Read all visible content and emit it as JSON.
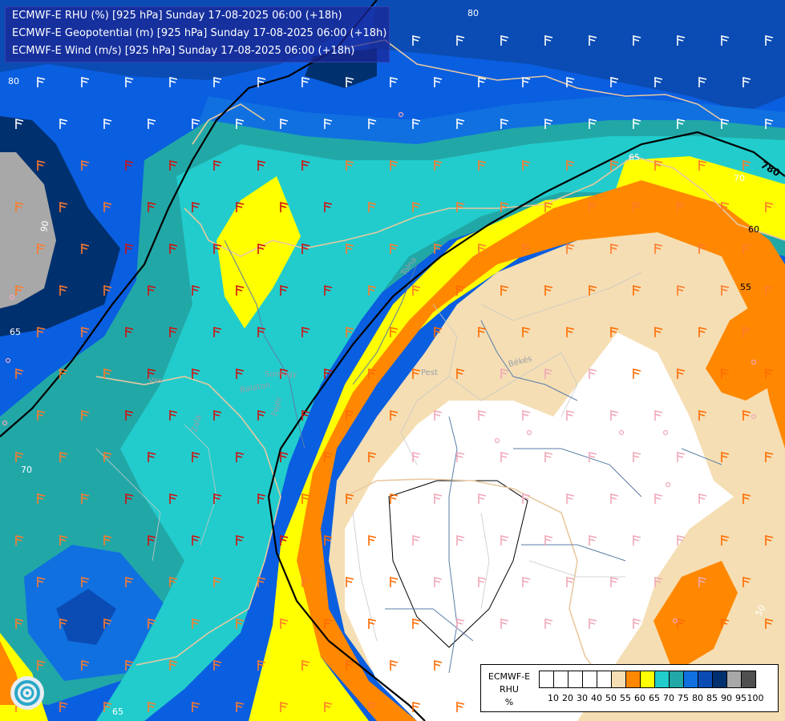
{
  "title_lines": [
    "ECMWF-E RHU (%) [925 hPa] Sunday 17-08-2025 06:00 (+18h)",
    "ECMWF-E Geopotential (m) [925 hPa] Sunday 17-08-2025 06:00 (+18h)",
    "ECMWF-E Wind (m/s) [925 hPa] Sunday 17-08-2025 06:00 (+18h)"
  ],
  "legend": {
    "label_lines": [
      "ECMWF-E",
      "RHU",
      "%"
    ],
    "ticks": [
      "10",
      "20",
      "30",
      "40",
      "50",
      "55",
      "60",
      "65",
      "70",
      "75",
      "80",
      "85",
      "90",
      "95",
      "100"
    ],
    "colors": [
      "#ffffff",
      "#ffffff",
      "#ffffff",
      "#ffffff",
      "#ffffff",
      "#f5deb3",
      "#ff8800",
      "#ffff00",
      "#22cccc",
      "#22a7a7",
      "#1070e0",
      "#0a4cb4",
      "#00306e",
      "#a8a8a8",
      "#505050"
    ]
  },
  "contour_labels": [
    "80",
    "80",
    "90",
    "65",
    "70",
    "65",
    "70",
    "65",
    "60",
    "55",
    "50",
    "780"
  ],
  "place_names": [
    "Pest",
    "Békés",
    "Balaton",
    "Zala",
    "Somogy",
    "Fejér",
    "Vas",
    "Tolna"
  ],
  "colors": {
    "title_bg": "#1c2696",
    "geopotential_line": "#000000",
    "borders": "#e8c9a0",
    "rivers": "#5a7ea8"
  }
}
